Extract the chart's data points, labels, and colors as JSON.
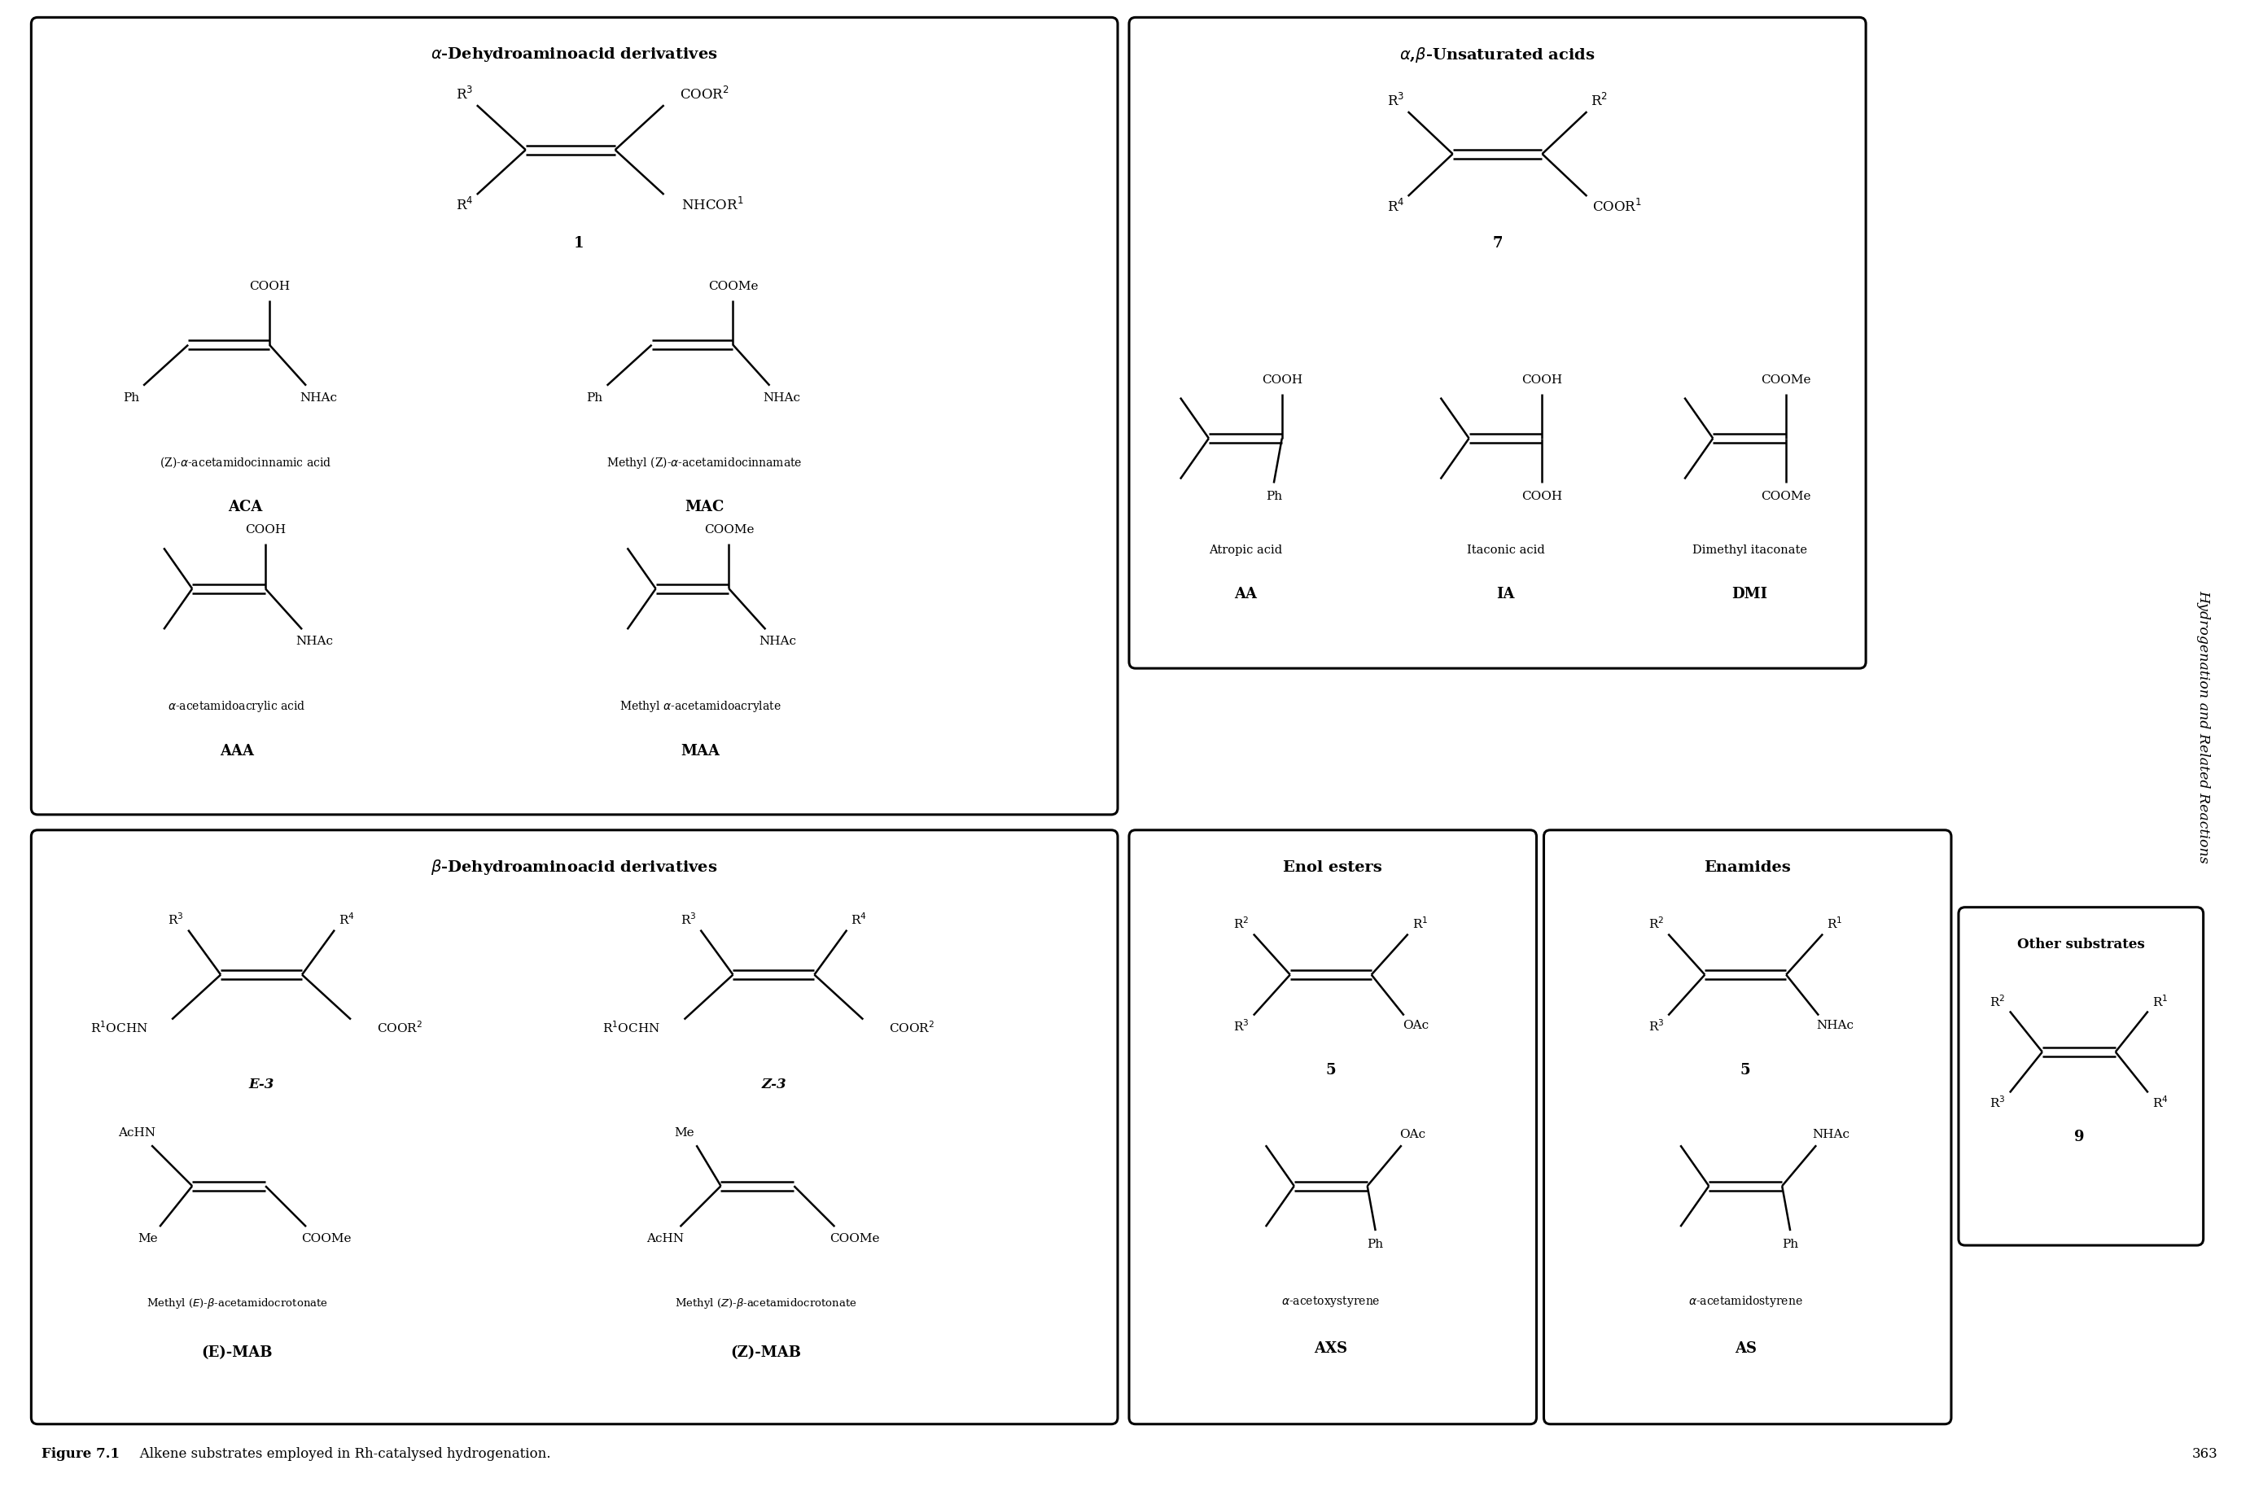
{
  "figure_title_bold": "Figure 7.1",
  "figure_title_normal": "   Alkene substrates employed in Rh-catalysed hydrogenation.",
  "page_number": "363",
  "side_text": "Hydrogenation and Related Reactions",
  "background_color": "#ffffff"
}
